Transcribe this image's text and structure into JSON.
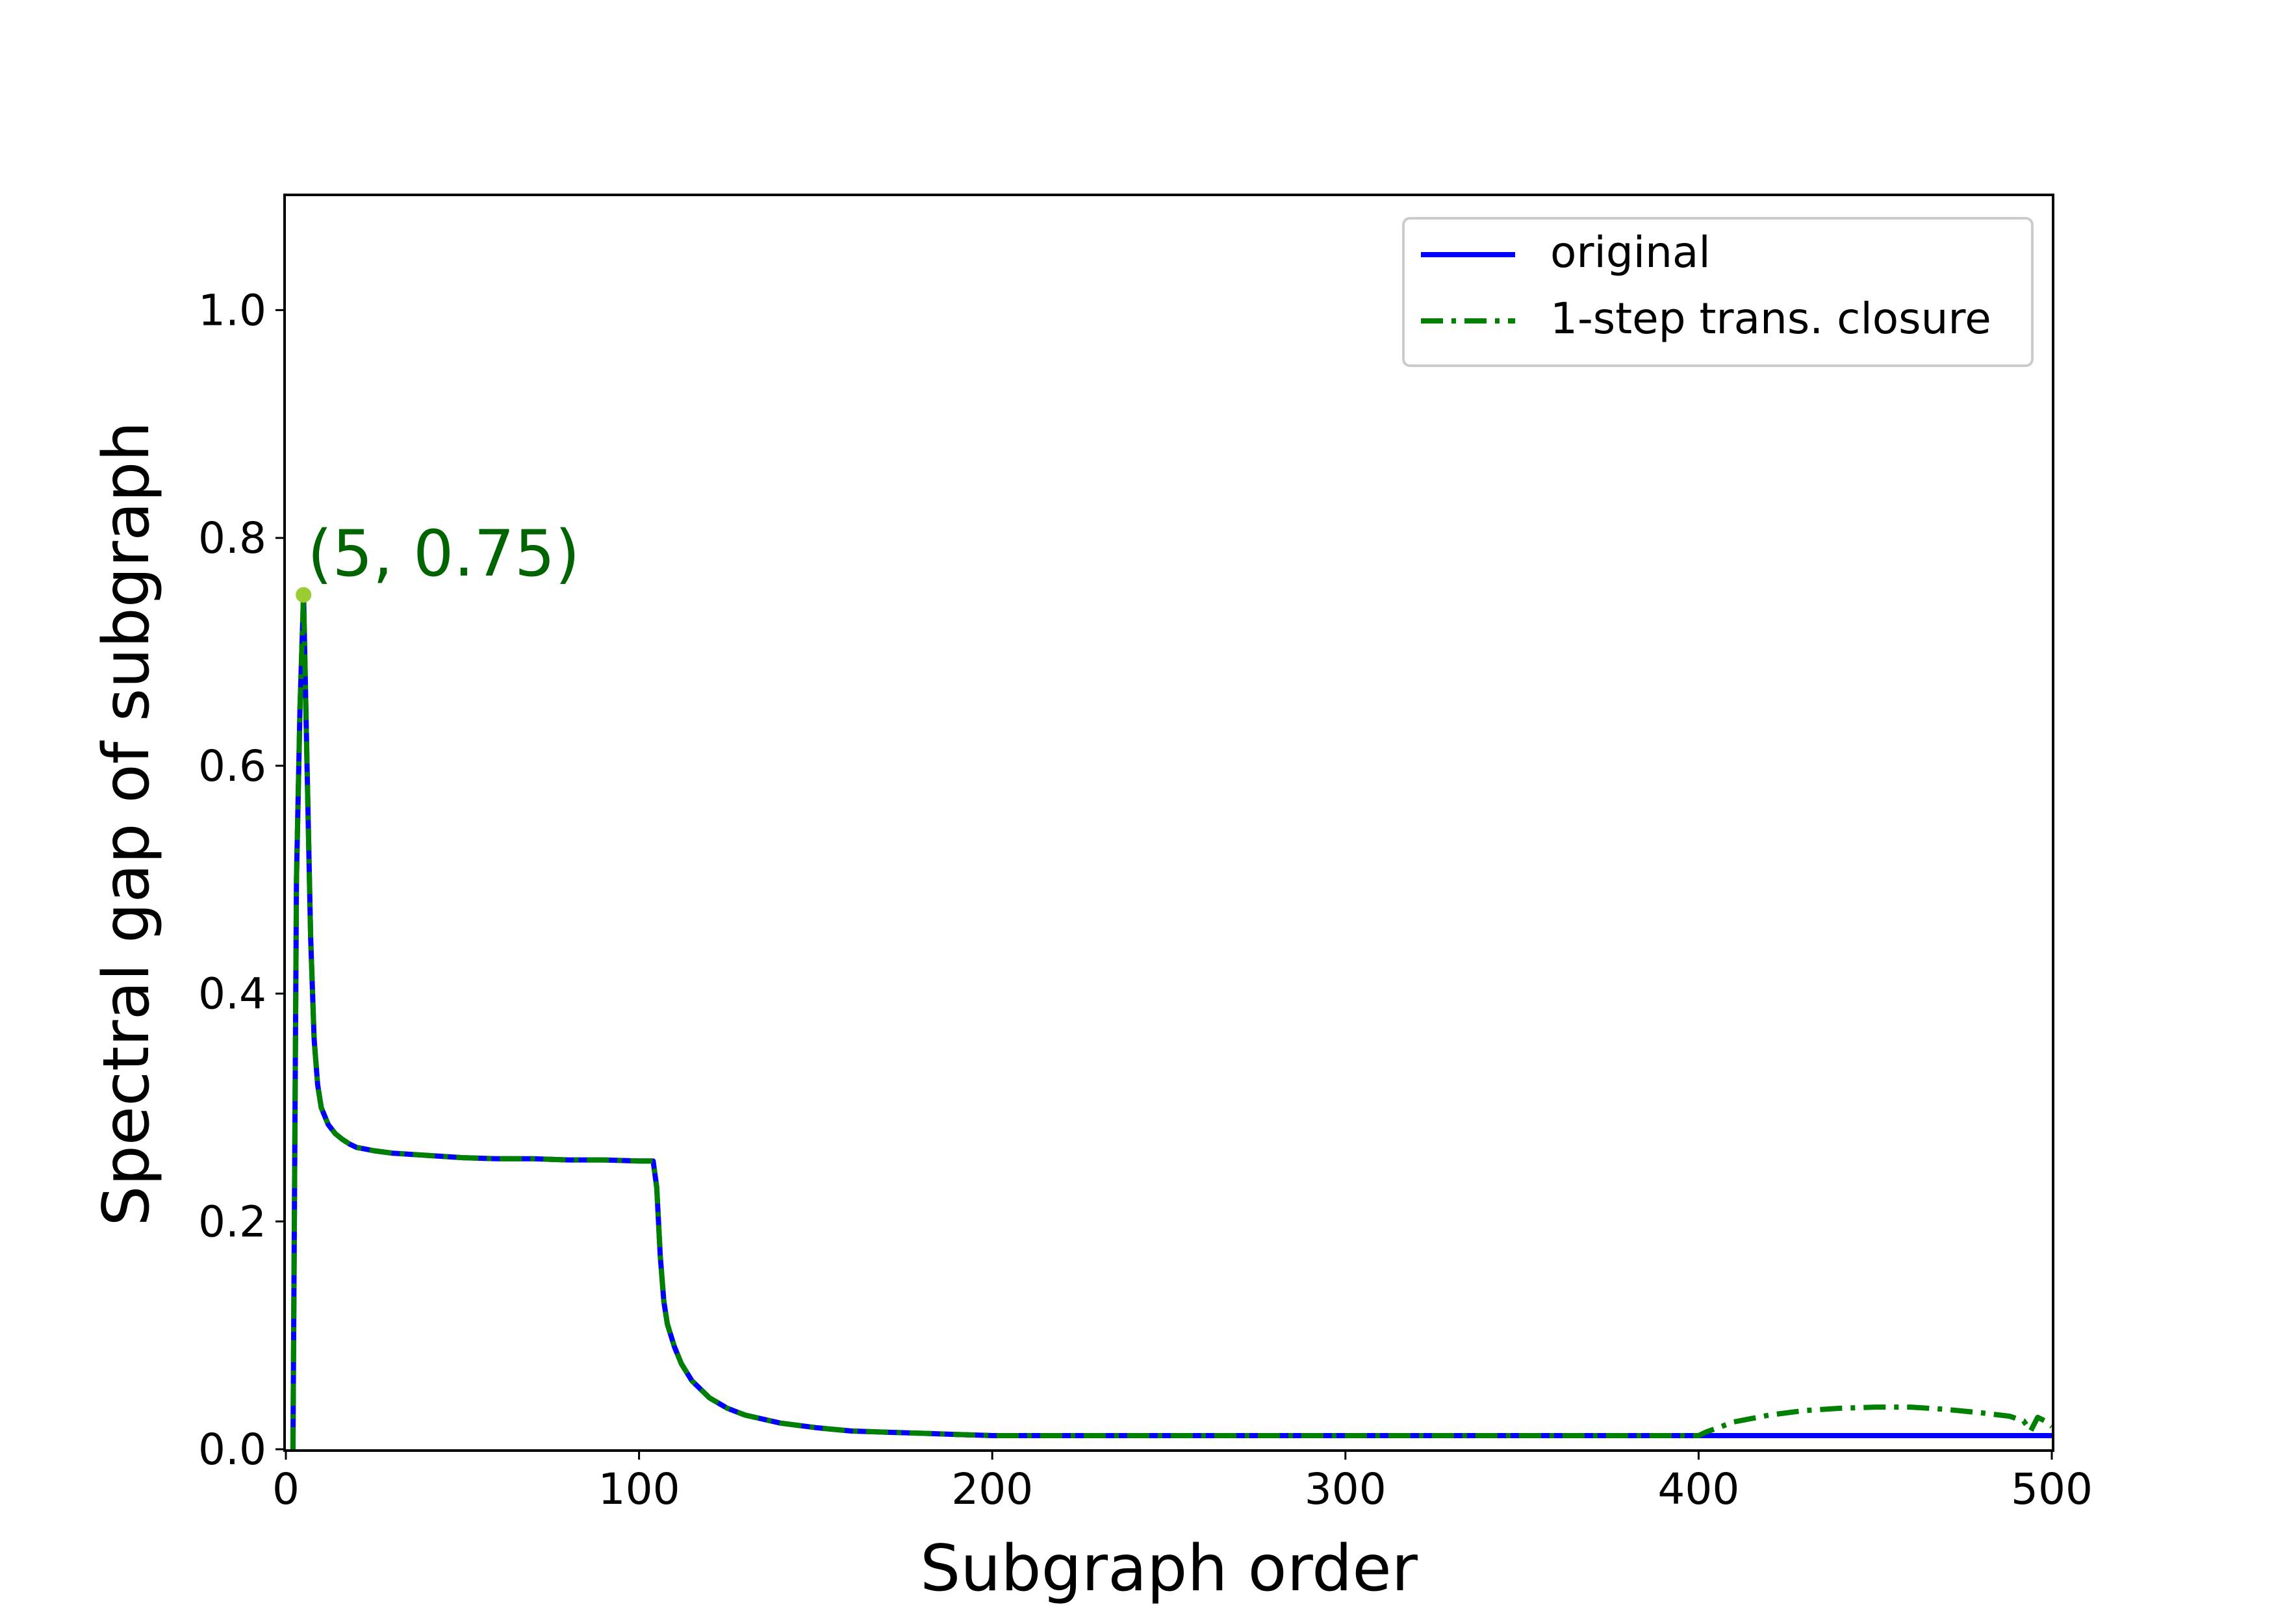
{
  "chart_data": {
    "type": "line",
    "xlabel": "Subgraph order",
    "ylabel": "Spectral gap of subgraph",
    "xlim": [
      0,
      500
    ],
    "ylim": [
      0,
      1.1
    ],
    "xticks": [
      0,
      100,
      200,
      300,
      400,
      500
    ],
    "xtick_labels": [
      "0",
      "100",
      "200",
      "300",
      "400",
      "500"
    ],
    "yticks": [
      0.0,
      0.2,
      0.4,
      0.6,
      0.8,
      1.0
    ],
    "ytick_labels": [
      "0.0",
      "0.2",
      "0.4",
      "0.6",
      "0.8",
      "1.0"
    ],
    "grid": false,
    "legend_position": "upper right",
    "series": [
      {
        "name": "original",
        "color": "#0000ff",
        "style": "solid",
        "x": [
          2,
          3,
          4,
          5,
          6,
          7,
          8,
          9,
          10,
          12,
          14,
          16,
          18,
          20,
          25,
          30,
          40,
          50,
          60,
          70,
          80,
          90,
          100,
          104,
          105,
          106,
          107,
          108,
          110,
          112,
          115,
          120,
          125,
          130,
          140,
          150,
          160,
          170,
          180,
          190,
          200,
          250,
          300,
          350,
          400,
          450,
          500
        ],
        "y": [
          0.0,
          0.5,
          0.65,
          0.75,
          0.6,
          0.45,
          0.36,
          0.32,
          0.3,
          0.285,
          0.277,
          0.272,
          0.268,
          0.265,
          0.262,
          0.26,
          0.258,
          0.256,
          0.255,
          0.255,
          0.254,
          0.254,
          0.253,
          0.253,
          0.23,
          0.17,
          0.13,
          0.11,
          0.09,
          0.075,
          0.06,
          0.045,
          0.036,
          0.03,
          0.023,
          0.019,
          0.016,
          0.015,
          0.014,
          0.013,
          0.012,
          0.012,
          0.012,
          0.012,
          0.012,
          0.012,
          0.012
        ]
      },
      {
        "name": "1-step trans. closure",
        "color": "#008000",
        "style": "dashdot",
        "x": [
          2,
          3,
          4,
          5,
          6,
          7,
          8,
          9,
          10,
          12,
          14,
          16,
          18,
          20,
          25,
          30,
          40,
          50,
          60,
          70,
          80,
          90,
          100,
          104,
          105,
          106,
          107,
          108,
          110,
          112,
          115,
          120,
          125,
          130,
          140,
          150,
          160,
          170,
          180,
          190,
          200,
          250,
          300,
          350,
          400,
          402,
          410,
          420,
          430,
          440,
          450,
          460,
          470,
          480,
          488,
          492,
          494,
          496,
          498,
          500
        ],
        "y": [
          0.0,
          0.5,
          0.65,
          0.75,
          0.6,
          0.45,
          0.36,
          0.32,
          0.3,
          0.285,
          0.277,
          0.272,
          0.268,
          0.265,
          0.262,
          0.26,
          0.258,
          0.256,
          0.255,
          0.255,
          0.254,
          0.254,
          0.253,
          0.253,
          0.23,
          0.17,
          0.13,
          0.11,
          0.09,
          0.075,
          0.06,
          0.045,
          0.036,
          0.03,
          0.023,
          0.019,
          0.016,
          0.015,
          0.014,
          0.013,
          0.012,
          0.012,
          0.012,
          0.012,
          0.012,
          0.015,
          0.024,
          0.03,
          0.034,
          0.036,
          0.037,
          0.037,
          0.035,
          0.032,
          0.029,
          0.025,
          0.016,
          0.028,
          0.025,
          0.02
        ]
      }
    ],
    "annotation": {
      "text": "(5, 0.75)",
      "x": 5,
      "y": 0.75,
      "text_color": "#006400",
      "marker_color": "#9acd32"
    }
  }
}
